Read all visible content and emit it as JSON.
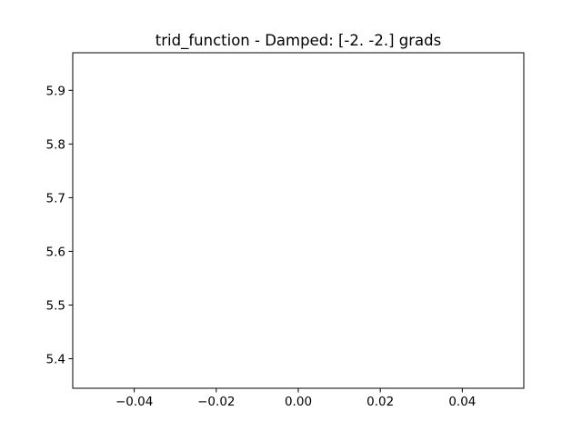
{
  "chart_data": {
    "type": "line",
    "title": "trid_function - Damped: [-2. -2.] grads",
    "xlabel": "",
    "ylabel": "",
    "xlim": [
      -0.055,
      0.055
    ],
    "ylim": [
      5.345,
      5.97
    ],
    "x_ticks": [
      {
        "value": -0.04,
        "label": "−0.04"
      },
      {
        "value": -0.02,
        "label": "−0.02"
      },
      {
        "value": 0.0,
        "label": "0.00"
      },
      {
        "value": 0.02,
        "label": "0.02"
      },
      {
        "value": 0.04,
        "label": "0.04"
      }
    ],
    "y_ticks": [
      {
        "value": 5.4,
        "label": "5.4"
      },
      {
        "value": 5.5,
        "label": "5.5"
      },
      {
        "value": 5.6,
        "label": "5.6"
      },
      {
        "value": 5.7,
        "label": "5.7"
      },
      {
        "value": 5.8,
        "label": "5.8"
      },
      {
        "value": 5.9,
        "label": "5.9"
      }
    ],
    "series": [],
    "grid": false,
    "legend": "none"
  }
}
